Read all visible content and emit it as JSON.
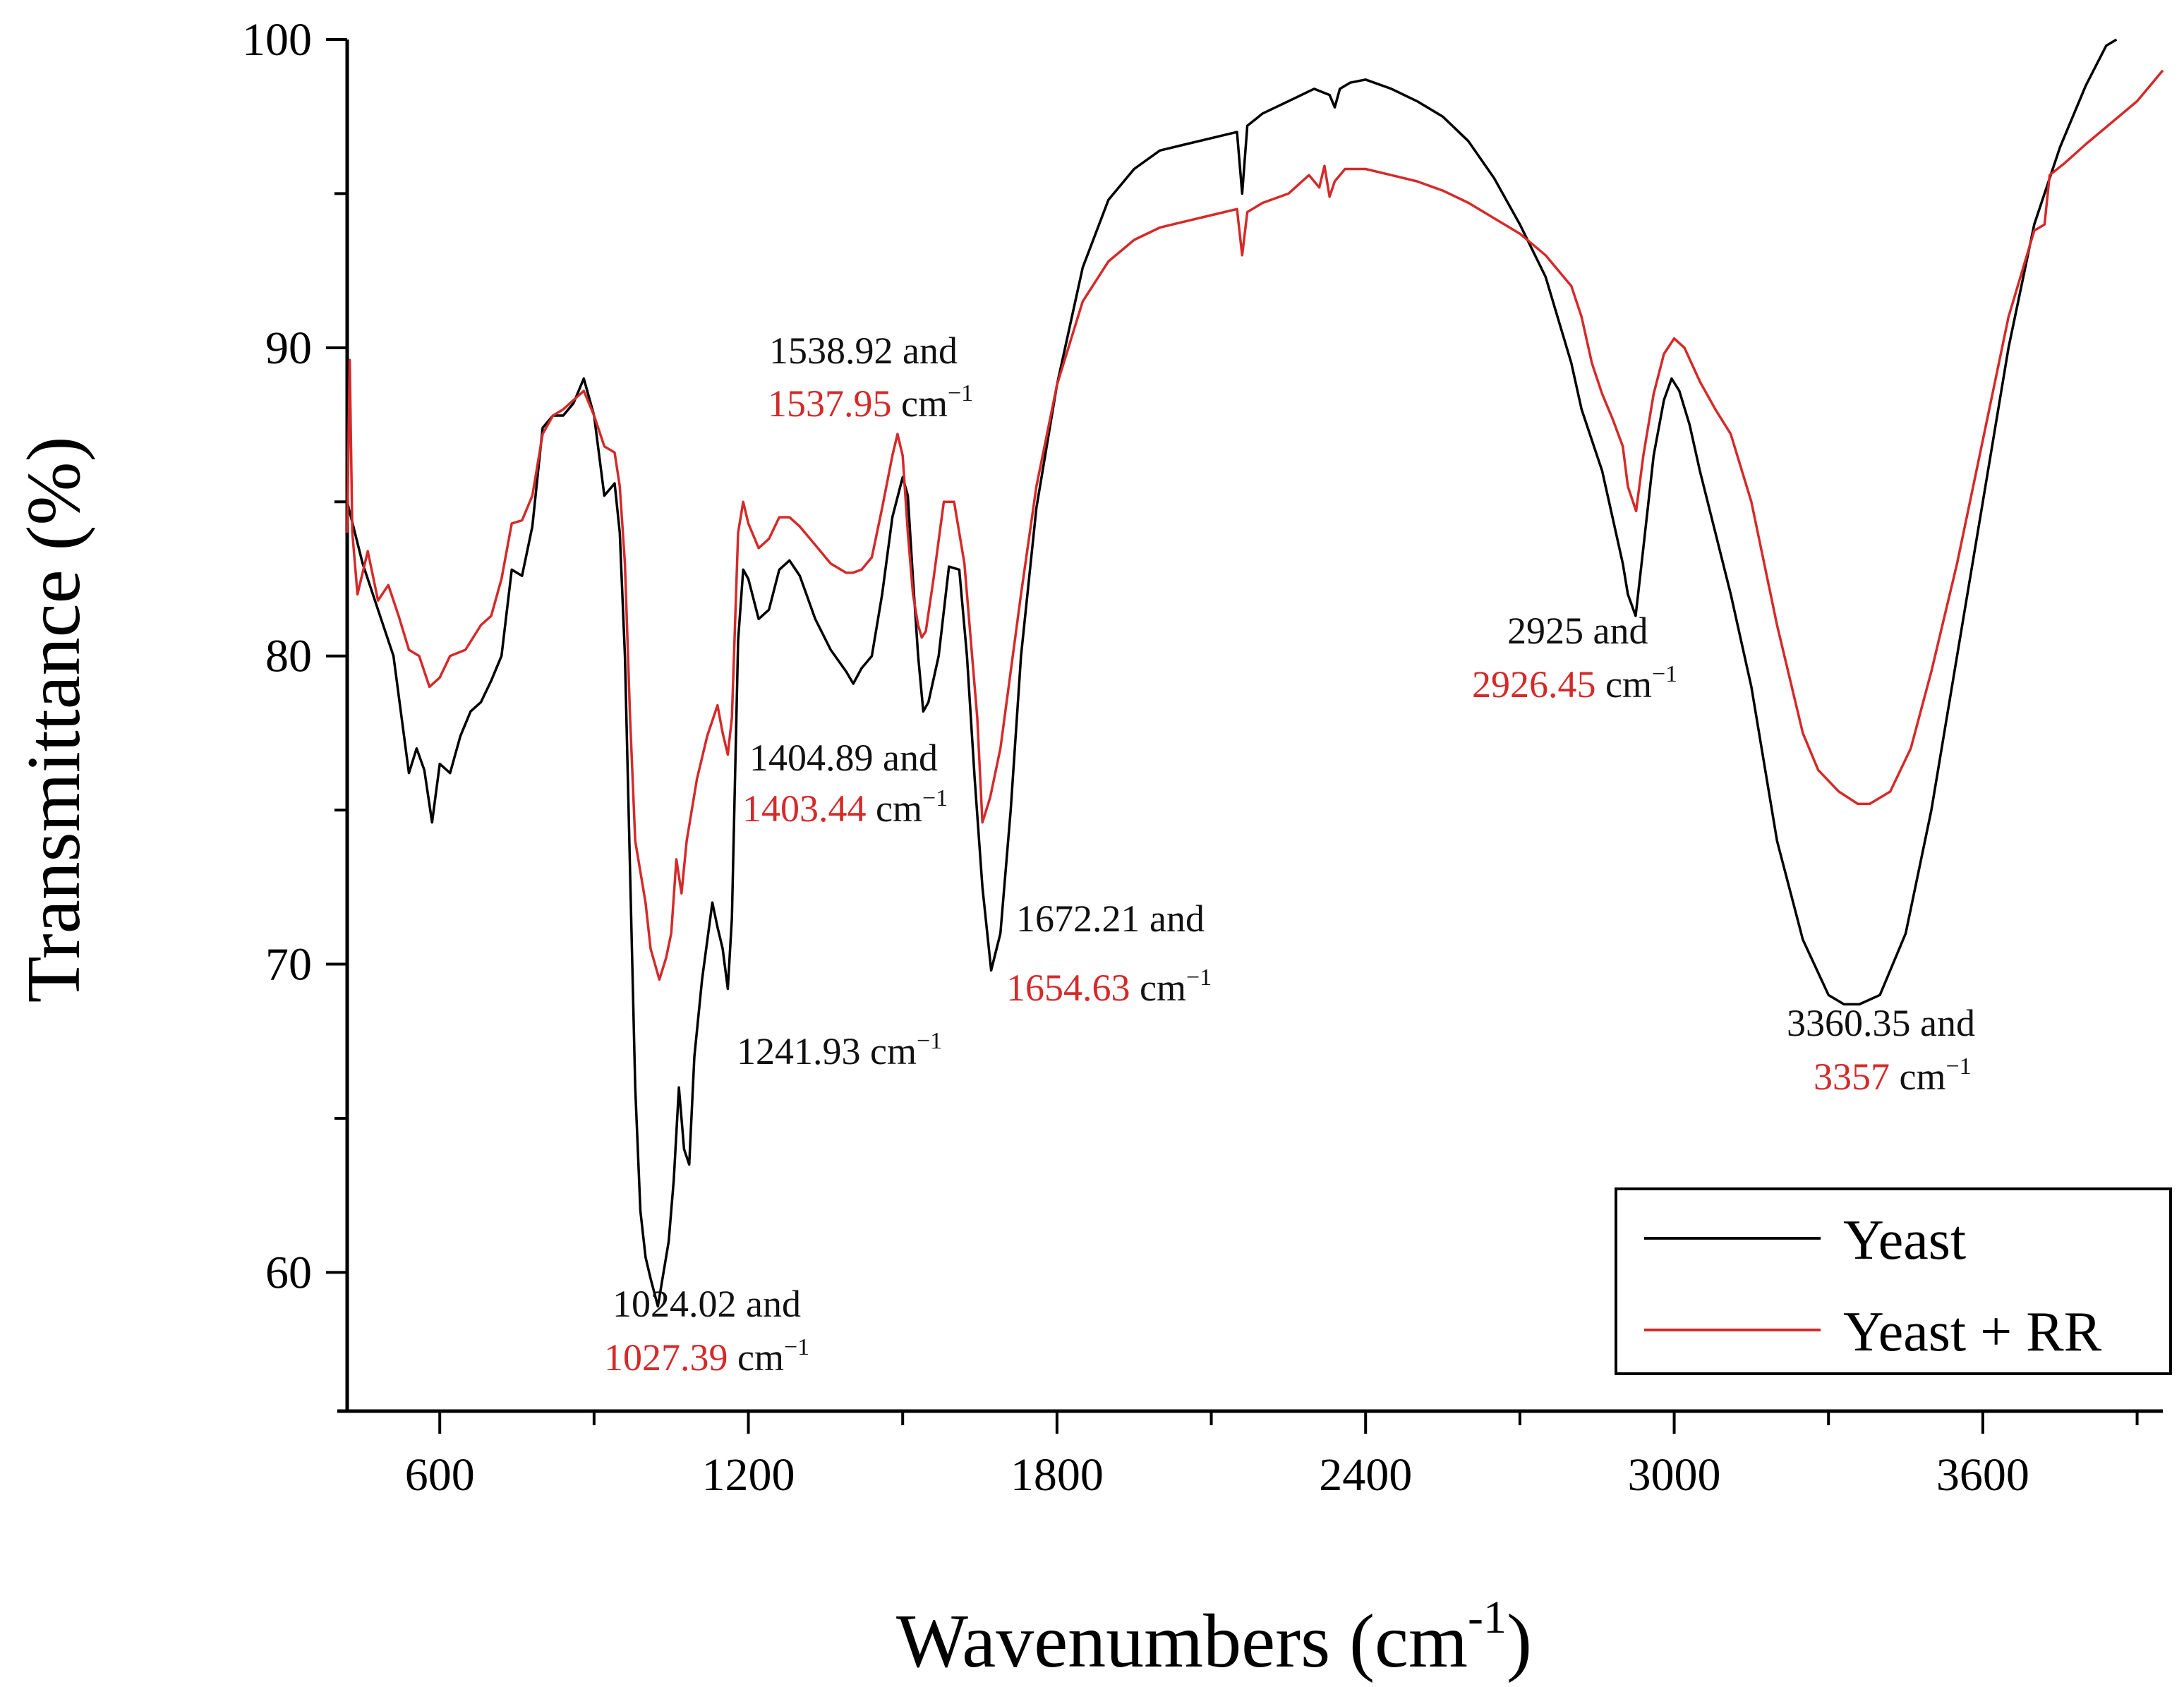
{
  "chart_data": {
    "type": "line",
    "title": "",
    "xlabel_main": "Wavenumbers (cm",
    "xlabel_sup": "-1",
    "xlabel_close": ")",
    "ylabel": "Transmittance (%)",
    "xlim": [
      420,
      3950
    ],
    "ylim": [
      55.5,
      100
    ],
    "x_ticks": [
      600,
      1200,
      1800,
      2400,
      3000,
      3600
    ],
    "x_tick_labels": [
      "600",
      "1200",
      "1800",
      "2400",
      "3000",
      "3600"
    ],
    "y_ticks": [
      60,
      70,
      80,
      90,
      100
    ],
    "y_tick_labels": [
      "60",
      "70",
      "80",
      "90",
      "100"
    ],
    "legend_position": "bottom-right",
    "series": [
      {
        "name": "Yeast",
        "color": "#000000",
        "points": [
          [
            420,
            85
          ],
          [
            450,
            83
          ],
          [
            480,
            81.5
          ],
          [
            510,
            80
          ],
          [
            540,
            76.2
          ],
          [
            555,
            77
          ],
          [
            570,
            76.3
          ],
          [
            585,
            74.6
          ],
          [
            600,
            76.5
          ],
          [
            620,
            76.2
          ],
          [
            640,
            77.4
          ],
          [
            660,
            78.2
          ],
          [
            680,
            78.5
          ],
          [
            700,
            79.2
          ],
          [
            720,
            80
          ],
          [
            740,
            82.8
          ],
          [
            760,
            82.6
          ],
          [
            780,
            84.2
          ],
          [
            800,
            87.4
          ],
          [
            820,
            87.8
          ],
          [
            840,
            87.8
          ],
          [
            860,
            88.2
          ],
          [
            880,
            89
          ],
          [
            900,
            87.8
          ],
          [
            920,
            85.2
          ],
          [
            940,
            85.6
          ],
          [
            950,
            84
          ],
          [
            960,
            80
          ],
          [
            970,
            73
          ],
          [
            980,
            66
          ],
          [
            990,
            62
          ],
          [
            1000,
            60.5
          ],
          [
            1010,
            59.8
          ],
          [
            1024,
            58.9
          ],
          [
            1035,
            60
          ],
          [
            1045,
            61
          ],
          [
            1055,
            63
          ],
          [
            1065,
            66
          ],
          [
            1075,
            64
          ],
          [
            1085,
            63.5
          ],
          [
            1095,
            67
          ],
          [
            1110,
            69.5
          ],
          [
            1130,
            72
          ],
          [
            1140,
            71.2
          ],
          [
            1150,
            70.5
          ],
          [
            1160,
            69.2
          ],
          [
            1168,
            71.5
          ],
          [
            1180,
            80.5
          ],
          [
            1190,
            82.8
          ],
          [
            1200,
            82.5
          ],
          [
            1220,
            81.2
          ],
          [
            1240,
            81.5
          ],
          [
            1260,
            82.8
          ],
          [
            1280,
            83.1
          ],
          [
            1300,
            82.6
          ],
          [
            1330,
            81.2
          ],
          [
            1360,
            80.2
          ],
          [
            1390,
            79.5
          ],
          [
            1404,
            79.1
          ],
          [
            1420,
            79.6
          ],
          [
            1440,
            80
          ],
          [
            1460,
            82
          ],
          [
            1480,
            84.5
          ],
          [
            1500,
            85.8
          ],
          [
            1510,
            85.2
          ],
          [
            1520,
            82.5
          ],
          [
            1530,
            80
          ],
          [
            1540,
            78.2
          ],
          [
            1550,
            78.5
          ],
          [
            1570,
            80
          ],
          [
            1590,
            82.9
          ],
          [
            1610,
            82.8
          ],
          [
            1625,
            80
          ],
          [
            1640,
            76
          ],
          [
            1655,
            72.5
          ],
          [
            1672,
            69.8
          ],
          [
            1690,
            71
          ],
          [
            1710,
            75
          ],
          [
            1730,
            80
          ],
          [
            1760,
            84.8
          ],
          [
            1800,
            88.8
          ],
          [
            1850,
            92.6
          ],
          [
            1900,
            94.8
          ],
          [
            1950,
            95.8
          ],
          [
            2000,
            96.4
          ],
          [
            2050,
            96.6
          ],
          [
            2100,
            96.8
          ],
          [
            2150,
            97
          ],
          [
            2160,
            95
          ],
          [
            2170,
            97.2
          ],
          [
            2200,
            97.6
          ],
          [
            2250,
            98
          ],
          [
            2300,
            98.4
          ],
          [
            2330,
            98.2
          ],
          [
            2340,
            97.8
          ],
          [
            2350,
            98.4
          ],
          [
            2370,
            98.6
          ],
          [
            2400,
            98.7
          ],
          [
            2450,
            98.4
          ],
          [
            2500,
            98
          ],
          [
            2550,
            97.5
          ],
          [
            2600,
            96.7
          ],
          [
            2650,
            95.5
          ],
          [
            2700,
            94
          ],
          [
            2750,
            92.3
          ],
          [
            2800,
            89.5
          ],
          [
            2820,
            88
          ],
          [
            2840,
            87
          ],
          [
            2860,
            86
          ],
          [
            2880,
            84.5
          ],
          [
            2900,
            83
          ],
          [
            2910,
            82
          ],
          [
            2925,
            81.3
          ],
          [
            2940,
            83.5
          ],
          [
            2960,
            86.5
          ],
          [
            2980,
            88.3
          ],
          [
            2995,
            89
          ],
          [
            3010,
            88.6
          ],
          [
            3030,
            87.5
          ],
          [
            3050,
            86
          ],
          [
            3080,
            84
          ],
          [
            3110,
            82
          ],
          [
            3150,
            79
          ],
          [
            3200,
            74
          ],
          [
            3250,
            70.8
          ],
          [
            3300,
            69
          ],
          [
            3330,
            68.7
          ],
          [
            3360,
            68.7
          ],
          [
            3400,
            69
          ],
          [
            3450,
            71
          ],
          [
            3500,
            75
          ],
          [
            3550,
            80
          ],
          [
            3600,
            85
          ],
          [
            3650,
            90
          ],
          [
            3700,
            94
          ],
          [
            3750,
            96.5
          ],
          [
            3800,
            98.5
          ],
          [
            3840,
            99.8
          ],
          [
            3860,
            100
          ]
        ]
      },
      {
        "name": "Yeast + RR",
        "color": "#d42a2a",
        "points": [
          [
            420,
            84
          ],
          [
            425,
            89.6
          ],
          [
            430,
            84
          ],
          [
            440,
            82
          ],
          [
            460,
            83.4
          ],
          [
            480,
            81.8
          ],
          [
            500,
            82.3
          ],
          [
            520,
            81.3
          ],
          [
            540,
            80.2
          ],
          [
            560,
            80
          ],
          [
            580,
            79
          ],
          [
            600,
            79.3
          ],
          [
            620,
            80
          ],
          [
            650,
            80.2
          ],
          [
            680,
            81
          ],
          [
            700,
            81.3
          ],
          [
            720,
            82.5
          ],
          [
            740,
            84.3
          ],
          [
            760,
            84.4
          ],
          [
            780,
            85.2
          ],
          [
            800,
            87.2
          ],
          [
            820,
            87.8
          ],
          [
            840,
            88
          ],
          [
            860,
            88.3
          ],
          [
            880,
            88.6
          ],
          [
            900,
            87.8
          ],
          [
            920,
            86.8
          ],
          [
            940,
            86.6
          ],
          [
            950,
            85.5
          ],
          [
            960,
            83
          ],
          [
            970,
            78
          ],
          [
            980,
            74
          ],
          [
            1000,
            72
          ],
          [
            1010,
            70.5
          ],
          [
            1027,
            69.5
          ],
          [
            1040,
            70.2
          ],
          [
            1050,
            71
          ],
          [
            1060,
            73.4
          ],
          [
            1070,
            72.3
          ],
          [
            1080,
            74
          ],
          [
            1100,
            76
          ],
          [
            1120,
            77.4
          ],
          [
            1140,
            78.4
          ],
          [
            1150,
            77.5
          ],
          [
            1160,
            76.8
          ],
          [
            1168,
            78
          ],
          [
            1180,
            84
          ],
          [
            1190,
            85
          ],
          [
            1200,
            84.3
          ],
          [
            1220,
            83.5
          ],
          [
            1240,
            83.8
          ],
          [
            1260,
            84.5
          ],
          [
            1280,
            84.5
          ],
          [
            1300,
            84.2
          ],
          [
            1330,
            83.6
          ],
          [
            1360,
            83
          ],
          [
            1390,
            82.7
          ],
          [
            1403,
            82.7
          ],
          [
            1420,
            82.8
          ],
          [
            1440,
            83.2
          ],
          [
            1460,
            84.8
          ],
          [
            1480,
            86.5
          ],
          [
            1490,
            87.2
          ],
          [
            1500,
            86.5
          ],
          [
            1510,
            84
          ],
          [
            1520,
            82
          ],
          [
            1530,
            81
          ],
          [
            1537,
            80.6
          ],
          [
            1545,
            80.8
          ],
          [
            1560,
            82.5
          ],
          [
            1580,
            85
          ],
          [
            1600,
            85
          ],
          [
            1620,
            83
          ],
          [
            1635,
            80
          ],
          [
            1645,
            78
          ],
          [
            1655,
            74.6
          ],
          [
            1670,
            75.4
          ],
          [
            1690,
            77
          ],
          [
            1710,
            79.5
          ],
          [
            1730,
            82
          ],
          [
            1760,
            85.5
          ],
          [
            1800,
            88.8
          ],
          [
            1850,
            91.5
          ],
          [
            1900,
            92.8
          ],
          [
            1950,
            93.5
          ],
          [
            2000,
            93.9
          ],
          [
            2050,
            94.1
          ],
          [
            2100,
            94.3
          ],
          [
            2150,
            94.5
          ],
          [
            2160,
            93
          ],
          [
            2170,
            94.4
          ],
          [
            2200,
            94.7
          ],
          [
            2250,
            95
          ],
          [
            2290,
            95.6
          ],
          [
            2310,
            95.2
          ],
          [
            2320,
            95.9
          ],
          [
            2330,
            94.9
          ],
          [
            2340,
            95.4
          ],
          [
            2360,
            95.8
          ],
          [
            2400,
            95.8
          ],
          [
            2450,
            95.6
          ],
          [
            2500,
            95.4
          ],
          [
            2550,
            95.1
          ],
          [
            2600,
            94.7
          ],
          [
            2650,
            94.2
          ],
          [
            2700,
            93.7
          ],
          [
            2750,
            93
          ],
          [
            2800,
            92
          ],
          [
            2820,
            91
          ],
          [
            2840,
            89.5
          ],
          [
            2860,
            88.5
          ],
          [
            2880,
            87.7
          ],
          [
            2900,
            86.8
          ],
          [
            2910,
            85.5
          ],
          [
            2926,
            84.7
          ],
          [
            2940,
            86.5
          ],
          [
            2960,
            88.5
          ],
          [
            2980,
            89.8
          ],
          [
            3000,
            90.3
          ],
          [
            3020,
            90
          ],
          [
            3050,
            88.9
          ],
          [
            3080,
            88
          ],
          [
            3110,
            87.2
          ],
          [
            3150,
            85
          ],
          [
            3200,
            81
          ],
          [
            3250,
            77.5
          ],
          [
            3280,
            76.3
          ],
          [
            3320,
            75.6
          ],
          [
            3357,
            75.2
          ],
          [
            3380,
            75.2
          ],
          [
            3420,
            75.6
          ],
          [
            3460,
            77
          ],
          [
            3500,
            79.5
          ],
          [
            3550,
            83
          ],
          [
            3600,
            87
          ],
          [
            3650,
            91
          ],
          [
            3700,
            93.8
          ],
          [
            3720,
            94
          ],
          [
            3730,
            95.6
          ],
          [
            3760,
            96
          ],
          [
            3800,
            96.6
          ],
          [
            3850,
            97.3
          ],
          [
            3900,
            98
          ],
          [
            3950,
            99
          ]
        ]
      }
    ],
    "annotations": [
      {
        "id": "a1538",
        "line1_black": "1538.92 and",
        "line2_red": "1537.95",
        "line2_unit": "cm"
      },
      {
        "id": "a1404",
        "line1_black": "1404.89 and",
        "line2_red": "1403.44",
        "line2_unit": "cm"
      },
      {
        "id": "a1672",
        "line1_black": "1672.21 and",
        "line2_red": "1654.63",
        "line2_unit": "cm"
      },
      {
        "id": "a1241",
        "line1_black": "1241.93 cm"
      },
      {
        "id": "a1024",
        "line1_black": "1024.02 and",
        "line2_red": "1027.39",
        "line2_unit": "cm"
      },
      {
        "id": "a2925",
        "line1_black": "2925 and",
        "line2_red": "2926.45",
        "line2_unit": "cm"
      },
      {
        "id": "a3360",
        "line1_black": "3360.35 and",
        "line2_red": "3357",
        "line2_unit": "cm"
      }
    ],
    "unit_superscript": "−1"
  }
}
